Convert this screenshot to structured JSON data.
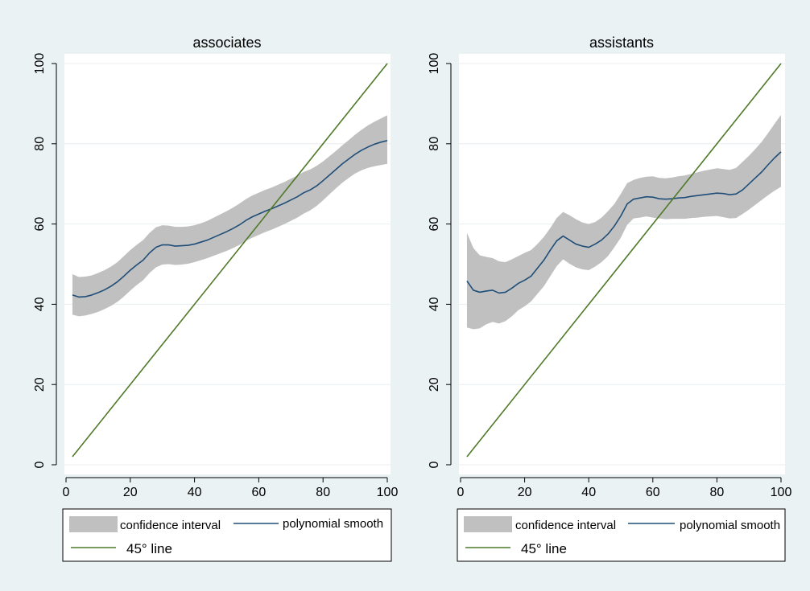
{
  "chart_data": [
    {
      "type": "line",
      "title": "associates",
      "xlabel": "",
      "ylabel": "",
      "xlim": [
        0,
        100
      ],
      "ylim": [
        0,
        100
      ],
      "xticks": [
        "0",
        "20",
        "40",
        "60",
        "80",
        "100"
      ],
      "yticks": [
        "0",
        "20",
        "40",
        "60",
        "80",
        "100"
      ],
      "grid": "horizontal",
      "series": [
        {
          "name": "polynomial smooth",
          "color": "#1f4e79",
          "x": [
            2,
            4,
            6,
            8,
            10,
            12,
            14,
            16,
            18,
            20,
            22,
            24,
            26,
            28,
            30,
            32,
            34,
            36,
            38,
            40,
            42,
            44,
            46,
            48,
            50,
            52,
            54,
            56,
            58,
            60,
            62,
            64,
            66,
            68,
            70,
            72,
            74,
            76,
            78,
            80,
            82,
            84,
            86,
            88,
            90,
            92,
            94,
            96,
            98,
            100
          ],
          "y": [
            42.3,
            41.8,
            41.9,
            42.3,
            42.9,
            43.6,
            44.5,
            45.6,
            47.0,
            48.5,
            49.8,
            51.0,
            52.8,
            54.2,
            54.8,
            54.8,
            54.5,
            54.6,
            54.7,
            55.0,
            55.5,
            56.0,
            56.7,
            57.4,
            58.1,
            58.9,
            59.8,
            60.9,
            61.8,
            62.5,
            63.2,
            63.8,
            64.5,
            65.2,
            66.0,
            66.8,
            67.8,
            68.5,
            69.5,
            70.8,
            72.2,
            73.6,
            75.0,
            76.2,
            77.4,
            78.4,
            79.2,
            79.9,
            80.4,
            80.8
          ]
        },
        {
          "name": "confidence interval",
          "color": "#c0c0c0",
          "x": [
            2,
            4,
            6,
            8,
            10,
            12,
            14,
            16,
            18,
            20,
            22,
            24,
            26,
            28,
            30,
            32,
            34,
            36,
            38,
            40,
            42,
            44,
            46,
            48,
            50,
            52,
            54,
            56,
            58,
            60,
            62,
            64,
            66,
            68,
            70,
            72,
            74,
            76,
            78,
            80,
            82,
            84,
            86,
            88,
            90,
            92,
            94,
            96,
            98,
            100
          ],
          "upper": [
            47.5,
            46.8,
            46.9,
            47.2,
            47.8,
            48.5,
            49.4,
            50.5,
            52.0,
            53.5,
            54.8,
            56.0,
            57.8,
            59.2,
            59.7,
            59.6,
            59.3,
            59.3,
            59.4,
            59.7,
            60.2,
            60.8,
            61.6,
            62.4,
            63.2,
            64.1,
            65.1,
            66.2,
            67.1,
            67.8,
            68.5,
            69.1,
            69.8,
            70.5,
            71.3,
            72.1,
            73.0,
            73.6,
            74.5,
            75.6,
            76.9,
            78.2,
            79.6,
            80.9,
            82.3,
            83.5,
            84.6,
            85.5,
            86.3,
            87.1
          ],
          "lower": [
            37.4,
            37.0,
            37.2,
            37.6,
            38.1,
            38.8,
            39.6,
            40.6,
            41.9,
            43.4,
            44.8,
            46.0,
            47.8,
            49.2,
            49.9,
            50.0,
            49.8,
            49.9,
            50.1,
            50.5,
            51.0,
            51.5,
            52.1,
            52.7,
            53.3,
            54.0,
            54.8,
            55.8,
            56.6,
            57.3,
            58.0,
            58.6,
            59.3,
            60.0,
            60.8,
            61.6,
            62.6,
            63.4,
            64.5,
            65.9,
            67.4,
            68.9,
            70.3,
            71.5,
            72.6,
            73.4,
            74.0,
            74.4,
            74.7,
            75.0
          ]
        },
        {
          "name": "45° line",
          "color": "#4f7a28",
          "x": [
            2,
            100
          ],
          "y": [
            2,
            100
          ]
        }
      ],
      "legend": {
        "position": "bottom",
        "entries": [
          "confidence interval",
          "polynomial smooth",
          "45° line"
        ]
      }
    },
    {
      "type": "line",
      "title": "assistants",
      "xlabel": "",
      "ylabel": "",
      "xlim": [
        0,
        100
      ],
      "ylim": [
        0,
        100
      ],
      "xticks": [
        "0",
        "20",
        "40",
        "60",
        "80",
        "100"
      ],
      "yticks": [
        "0",
        "20",
        "40",
        "60",
        "80",
        "100"
      ],
      "grid": "horizontal",
      "series": [
        {
          "name": "polynomial smooth",
          "color": "#1f4e79",
          "x": [
            2,
            4,
            6,
            8,
            10,
            12,
            14,
            16,
            18,
            20,
            22,
            24,
            26,
            28,
            30,
            32,
            34,
            36,
            38,
            40,
            42,
            44,
            46,
            48,
            50,
            52,
            54,
            56,
            58,
            60,
            62,
            64,
            66,
            68,
            70,
            72,
            74,
            76,
            78,
            80,
            82,
            84,
            86,
            88,
            90,
            92,
            94,
            96,
            98,
            100
          ],
          "y": [
            45.8,
            43.5,
            43.0,
            43.3,
            43.5,
            42.8,
            43.0,
            44.0,
            45.2,
            46.0,
            47.0,
            49.0,
            51.0,
            53.5,
            55.8,
            57.0,
            56.0,
            55.0,
            54.5,
            54.2,
            55.0,
            56.0,
            57.5,
            59.5,
            62.0,
            65.0,
            66.2,
            66.5,
            66.8,
            66.7,
            66.3,
            66.2,
            66.3,
            66.5,
            66.6,
            66.9,
            67.1,
            67.3,
            67.5,
            67.7,
            67.6,
            67.3,
            67.5,
            68.5,
            70.0,
            71.5,
            73.0,
            74.8,
            76.5,
            78.0
          ]
        },
        {
          "name": "confidence interval",
          "color": "#c0c0c0",
          "x": [
            2,
            4,
            6,
            8,
            10,
            12,
            14,
            16,
            18,
            20,
            22,
            24,
            26,
            28,
            30,
            32,
            34,
            36,
            38,
            40,
            42,
            44,
            46,
            48,
            50,
            52,
            54,
            56,
            58,
            60,
            62,
            64,
            66,
            68,
            70,
            72,
            74,
            76,
            78,
            80,
            82,
            84,
            86,
            88,
            90,
            92,
            94,
            96,
            98,
            100
          ],
          "upper": [
            57.8,
            54.0,
            52.2,
            51.8,
            51.5,
            50.7,
            50.5,
            51.2,
            52.0,
            52.8,
            53.5,
            55.0,
            56.8,
            59.0,
            61.5,
            63.0,
            62.2,
            61.2,
            60.4,
            60.0,
            60.5,
            61.6,
            63.2,
            65.0,
            67.5,
            70.2,
            71.0,
            71.5,
            71.8,
            71.9,
            71.5,
            71.4,
            71.6,
            71.9,
            72.1,
            72.5,
            72.9,
            73.3,
            73.6,
            73.9,
            73.7,
            73.5,
            74.0,
            75.5,
            77.0,
            78.7,
            80.5,
            82.7,
            85.0,
            87.2
          ],
          "lower": [
            34.2,
            33.8,
            34.0,
            35.0,
            35.6,
            35.2,
            35.8,
            37.0,
            38.5,
            39.5,
            40.7,
            42.6,
            44.5,
            47.0,
            49.5,
            51.2,
            50.1,
            49.2,
            48.7,
            48.5,
            49.4,
            50.5,
            52.0,
            54.2,
            56.6,
            59.8,
            61.4,
            61.6,
            61.9,
            61.6,
            61.4,
            61.2,
            61.3,
            61.3,
            61.3,
            61.5,
            61.6,
            61.8,
            61.9,
            62.0,
            61.7,
            61.4,
            61.5,
            62.5,
            63.6,
            64.8,
            66.0,
            67.2,
            68.3,
            69.3
          ]
        },
        {
          "name": "45° line",
          "color": "#4f7a28",
          "x": [
            2,
            100
          ],
          "y": [
            2,
            100
          ]
        }
      ],
      "legend": {
        "position": "bottom",
        "entries": [
          "confidence interval",
          "polynomial smooth",
          "45° line"
        ]
      }
    }
  ],
  "style": {
    "background": "#eaf2f3",
    "plot_background": "#ffffff",
    "grid_color": "#e8eef0",
    "axis_color": "#000000",
    "band_color": "#c0c0c0",
    "smooth_color": "#1f4e79",
    "line45_color": "#4f7a28"
  }
}
